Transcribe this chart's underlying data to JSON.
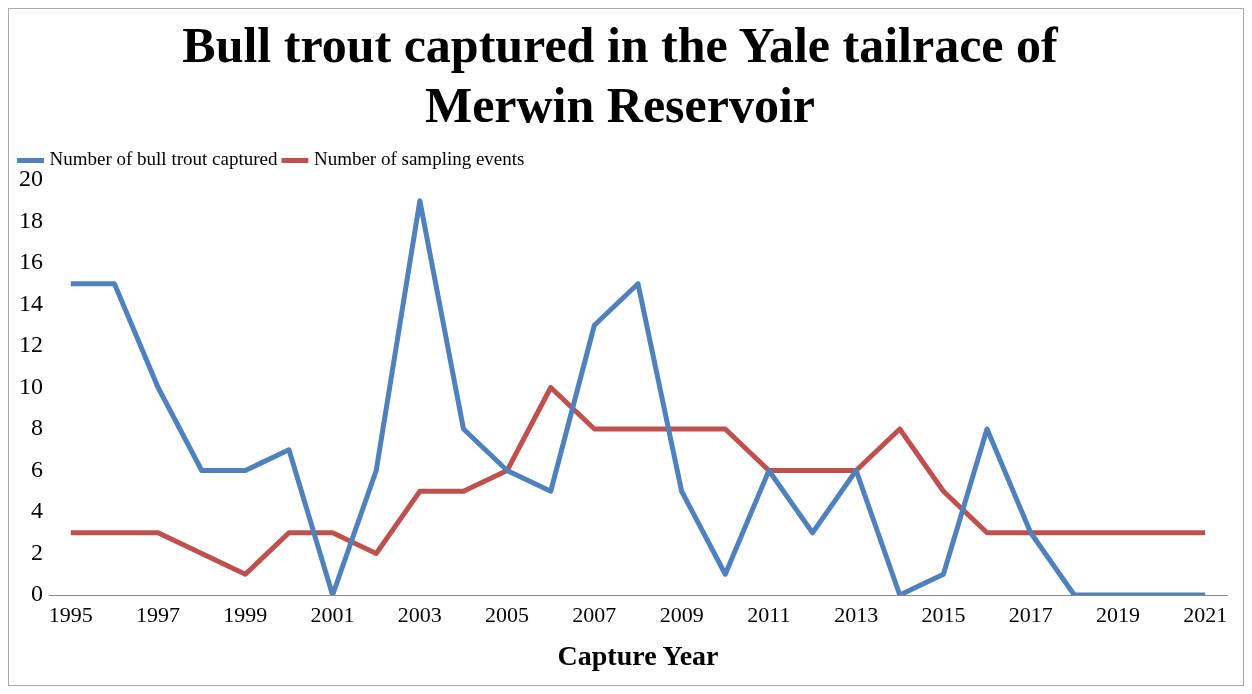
{
  "chart_data": {
    "type": "line",
    "title": "Bull trout captured in the Yale tailrace of Merwin Reservoir",
    "xlabel": "Capture Year",
    "categories": [
      "1995",
      null,
      "1997",
      null,
      "1999",
      null,
      "2001",
      null,
      "2003",
      null,
      "2005",
      null,
      "2007",
      null,
      "2009",
      null,
      "2011",
      null,
      "2013",
      null,
      "2015",
      null,
      "2017",
      null,
      "2019",
      null,
      "2021"
    ],
    "series": [
      {
        "name": "Number of bull trout captured",
        "color": "#4f81bd",
        "values": [
          15,
          15,
          10,
          6,
          6,
          7,
          0,
          6,
          19,
          8,
          6,
          5,
          13,
          15,
          5,
          1,
          6,
          3,
          6,
          0,
          1,
          8,
          3,
          0,
          0,
          0,
          0
        ]
      },
      {
        "name": "Number of sampling events",
        "color": "#c0504d",
        "values": [
          3,
          3,
          3,
          2,
          1,
          3,
          3,
          2,
          5,
          5,
          6,
          10,
          8,
          8,
          8,
          8,
          6,
          6,
          6,
          8,
          5,
          3,
          3,
          3,
          3,
          3,
          3
        ]
      }
    ],
    "ylim": [
      0,
      20
    ],
    "yticks": [
      0,
      2,
      4,
      6,
      8,
      10,
      12,
      14,
      16,
      18,
      20
    ],
    "grid": false,
    "legend": "top left",
    "marker": "none",
    "line_style": "solid"
  }
}
